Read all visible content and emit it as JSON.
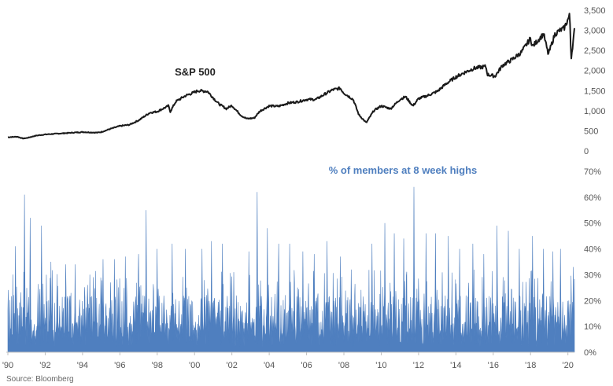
{
  "source": "Source: Bloomberg",
  "colors": {
    "sp500": "#1a1a1a",
    "breadth": "#4f7fbf",
    "axis": "#d0d0d0"
  },
  "chart_data": [
    {
      "type": "line",
      "title": "S&P 500",
      "ylim": [
        0,
        3500
      ],
      "yticks": [
        0,
        500,
        1000,
        1500,
        2000,
        2500,
        3000,
        3500
      ],
      "ytick_labels": [
        "0",
        "500",
        "1,000",
        "1,500",
        "2,000",
        "2,500",
        "3,000",
        "3,500"
      ],
      "x_range": [
        1990.0,
        2020.35
      ],
      "series": [
        {
          "values_xy": [
            [
              1990.0,
              340
            ],
            [
              1990.5,
              355
            ],
            [
              1990.8,
              310
            ],
            [
              1991.0,
              320
            ],
            [
              1991.5,
              380
            ],
            [
              1992.0,
              410
            ],
            [
              1993.0,
              440
            ],
            [
              1994.0,
              470
            ],
            [
              1994.8,
              455
            ],
            [
              1995.0,
              470
            ],
            [
              1995.5,
              550
            ],
            [
              1996.0,
              620
            ],
            [
              1996.5,
              650
            ],
            [
              1997.0,
              760
            ],
            [
              1997.6,
              950
            ],
            [
              1998.0,
              980
            ],
            [
              1998.6,
              1120
            ],
            [
              1998.7,
              980
            ],
            [
              1999.0,
              1230
            ],
            [
              1999.5,
              1370
            ],
            [
              2000.0,
              1460
            ],
            [
              2000.2,
              1500
            ],
            [
              2000.7,
              1480
            ],
            [
              2001.0,
              1320
            ],
            [
              2001.3,
              1170
            ],
            [
              2001.7,
              1050
            ],
            [
              2002.0,
              1130
            ],
            [
              2002.5,
              880
            ],
            [
              2002.8,
              800
            ],
            [
              2003.2,
              820
            ],
            [
              2003.5,
              990
            ],
            [
              2004.0,
              1120
            ],
            [
              2004.5,
              1110
            ],
            [
              2005.0,
              1190
            ],
            [
              2005.5,
              1220
            ],
            [
              2006.0,
              1280
            ],
            [
              2006.5,
              1280
            ],
            [
              2007.0,
              1420
            ],
            [
              2007.4,
              1520
            ],
            [
              2007.8,
              1560
            ],
            [
              2008.0,
              1440
            ],
            [
              2008.5,
              1280
            ],
            [
              2008.8,
              900
            ],
            [
              2009.2,
              700
            ],
            [
              2009.6,
              1000
            ],
            [
              2010.0,
              1120
            ],
            [
              2010.5,
              1050
            ],
            [
              2011.0,
              1280
            ],
            [
              2011.3,
              1350
            ],
            [
              2011.7,
              1120
            ],
            [
              2012.0,
              1300
            ],
            [
              2012.5,
              1380
            ],
            [
              2013.0,
              1480
            ],
            [
              2013.5,
              1680
            ],
            [
              2014.0,
              1840
            ],
            [
              2014.5,
              1960
            ],
            [
              2015.0,
              2060
            ],
            [
              2015.6,
              2100
            ],
            [
              2015.7,
              1900
            ],
            [
              2016.1,
              1860
            ],
            [
              2016.5,
              2130
            ],
            [
              2017.0,
              2270
            ],
            [
              2017.5,
              2450
            ],
            [
              2018.0,
              2800
            ],
            [
              2018.1,
              2600
            ],
            [
              2018.7,
              2910
            ],
            [
              2018.95,
              2400
            ],
            [
              2019.3,
              2900
            ],
            [
              2019.5,
              2980
            ],
            [
              2019.8,
              3050
            ],
            [
              2020.1,
              3380
            ],
            [
              2020.17,
              2300
            ],
            [
              2020.25,
              2600
            ],
            [
              2020.35,
              3000
            ]
          ]
        }
      ]
    },
    {
      "type": "area",
      "title": "% of members at 8 week highs",
      "ylim": [
        0,
        0.7
      ],
      "yticks": [
        0,
        0.1,
        0.2,
        0.3,
        0.4,
        0.5,
        0.6,
        0.7
      ],
      "ytick_labels": [
        "0%",
        "10%",
        "20%",
        "30%",
        "40%",
        "50%",
        "60%",
        "70%"
      ],
      "x_range": [
        1990.0,
        2020.35
      ],
      "xticks": [
        1990,
        1992,
        1994,
        1996,
        1998,
        2000,
        2002,
        2004,
        2006,
        2008,
        2010,
        2012,
        2014,
        2016,
        2018,
        2020
      ],
      "xtick_labels": [
        "'90",
        "'92",
        "'94",
        "'96",
        "'98",
        "'00",
        "'02",
        "'04",
        "'06",
        "'08",
        "'10",
        "'12",
        "'14",
        "'16",
        "'18",
        "'20"
      ],
      "series": [
        {
          "peaks_xy": [
            [
              1990.4,
              0.41
            ],
            [
              1990.9,
              0.61
            ],
            [
              1991.2,
              0.52
            ],
            [
              1991.8,
              0.49
            ],
            [
              1992.3,
              0.35
            ],
            [
              1993.1,
              0.34
            ],
            [
              1993.6,
              0.34
            ],
            [
              1994.4,
              0.3
            ],
            [
              1995.1,
              0.36
            ],
            [
              1995.7,
              0.36
            ],
            [
              1996.3,
              0.37
            ],
            [
              1997.0,
              0.38
            ],
            [
              1997.4,
              0.55
            ],
            [
              1998.0,
              0.4
            ],
            [
              1998.8,
              0.42
            ],
            [
              1999.5,
              0.4
            ],
            [
              2000.4,
              0.4
            ],
            [
              2000.9,
              0.43
            ],
            [
              2001.5,
              0.42
            ],
            [
              2002.1,
              0.31
            ],
            [
              2002.9,
              0.39
            ],
            [
              2003.35,
              0.62
            ],
            [
              2003.9,
              0.48
            ],
            [
              2004.5,
              0.42
            ],
            [
              2005.1,
              0.42
            ],
            [
              2005.8,
              0.39
            ],
            [
              2006.4,
              0.38
            ],
            [
              2007.1,
              0.43
            ],
            [
              2007.8,
              0.37
            ],
            [
              2008.4,
              0.32
            ],
            [
              2009.5,
              0.42
            ],
            [
              2010.2,
              0.5
            ],
            [
              2010.7,
              0.46
            ],
            [
              2011.2,
              0.44
            ],
            [
              2011.75,
              0.64
            ],
            [
              2012.4,
              0.46
            ],
            [
              2012.9,
              0.46
            ],
            [
              2013.6,
              0.45
            ],
            [
              2014.2,
              0.4
            ],
            [
              2014.9,
              0.42
            ],
            [
              2015.5,
              0.38
            ],
            [
              2016.2,
              0.49
            ],
            [
              2016.8,
              0.47
            ],
            [
              2017.4,
              0.4
            ],
            [
              2018.1,
              0.45
            ],
            [
              2018.7,
              0.4
            ],
            [
              2019.2,
              0.39
            ],
            [
              2019.6,
              0.4
            ],
            [
              2020.28,
              0.33
            ]
          ]
        }
      ]
    }
  ]
}
